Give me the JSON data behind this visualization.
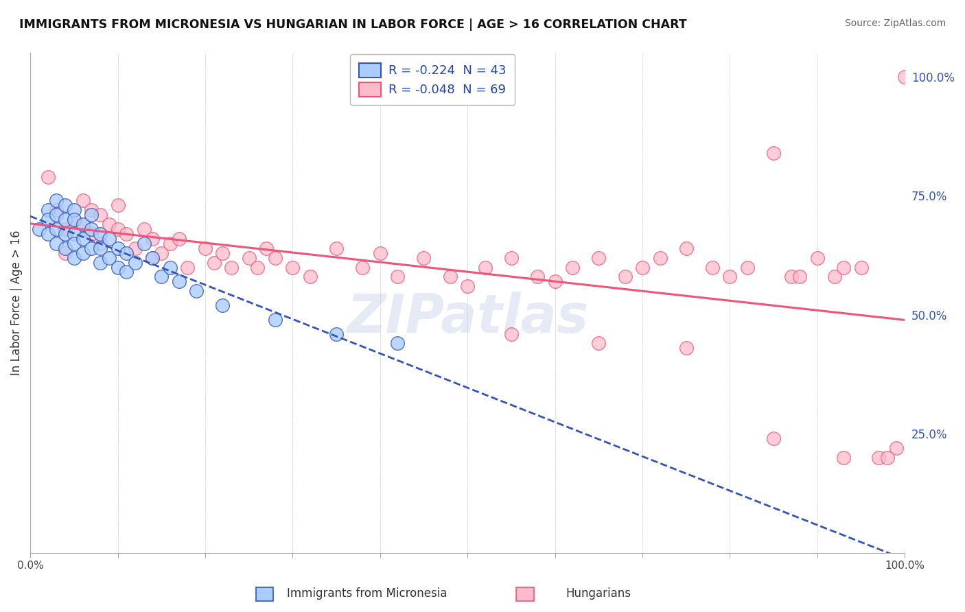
{
  "title": "IMMIGRANTS FROM MICRONESIA VS HUNGARIAN IN LABOR FORCE | AGE > 16 CORRELATION CHART",
  "source": "Source: ZipAtlas.com",
  "ylabel": "In Labor Force | Age > 16",
  "legend_blue_r": "-0.224",
  "legend_blue_n": "43",
  "legend_pink_r": "-0.048",
  "legend_pink_n": "69",
  "legend_blue_label": "Immigrants from Micronesia",
  "legend_pink_label": "Hungarians",
  "blue_color": "#aaccff",
  "pink_color": "#ffbbcc",
  "trend_blue_color": "#3355bb",
  "trend_pink_color": "#ee5577",
  "background_color": "#ffffff",
  "grid_color": "#cccccc",
  "xlim": [
    0.0,
    1.0
  ],
  "ylim": [
    0.0,
    1.05
  ],
  "blue_x": [
    0.01,
    0.02,
    0.02,
    0.02,
    0.03,
    0.03,
    0.03,
    0.03,
    0.04,
    0.04,
    0.04,
    0.04,
    0.05,
    0.05,
    0.05,
    0.05,
    0.05,
    0.06,
    0.06,
    0.06,
    0.07,
    0.07,
    0.07,
    0.08,
    0.08,
    0.08,
    0.09,
    0.09,
    0.1,
    0.1,
    0.11,
    0.11,
    0.12,
    0.13,
    0.14,
    0.15,
    0.16,
    0.17,
    0.19,
    0.22,
    0.28,
    0.35,
    0.42
  ],
  "blue_y": [
    0.68,
    0.72,
    0.7,
    0.67,
    0.74,
    0.71,
    0.68,
    0.65,
    0.73,
    0.7,
    0.67,
    0.64,
    0.72,
    0.7,
    0.67,
    0.65,
    0.62,
    0.69,
    0.66,
    0.63,
    0.71,
    0.68,
    0.64,
    0.67,
    0.64,
    0.61,
    0.66,
    0.62,
    0.64,
    0.6,
    0.63,
    0.59,
    0.61,
    0.65,
    0.62,
    0.58,
    0.6,
    0.57,
    0.55,
    0.52,
    0.49,
    0.46,
    0.44
  ],
  "pink_x": [
    0.02,
    0.03,
    0.04,
    0.04,
    0.05,
    0.06,
    0.06,
    0.07,
    0.07,
    0.08,
    0.08,
    0.09,
    0.1,
    0.1,
    0.11,
    0.12,
    0.13,
    0.14,
    0.14,
    0.15,
    0.16,
    0.17,
    0.18,
    0.2,
    0.21,
    0.22,
    0.23,
    0.25,
    0.26,
    0.27,
    0.28,
    0.3,
    0.32,
    0.35,
    0.38,
    0.4,
    0.42,
    0.45,
    0.48,
    0.5,
    0.52,
    0.55,
    0.58,
    0.6,
    0.62,
    0.65,
    0.68,
    0.7,
    0.72,
    0.75,
    0.78,
    0.8,
    0.82,
    0.85,
    0.87,
    0.88,
    0.9,
    0.92,
    0.93,
    0.95,
    0.97,
    0.98,
    0.99,
    1.0,
    0.55,
    0.65,
    0.75,
    0.85,
    0.93
  ],
  "pink_y": [
    0.79,
    0.72,
    0.68,
    0.63,
    0.7,
    0.69,
    0.74,
    0.72,
    0.67,
    0.71,
    0.65,
    0.69,
    0.73,
    0.68,
    0.67,
    0.64,
    0.68,
    0.66,
    0.62,
    0.63,
    0.65,
    0.66,
    0.6,
    0.64,
    0.61,
    0.63,
    0.6,
    0.62,
    0.6,
    0.64,
    0.62,
    0.6,
    0.58,
    0.64,
    0.6,
    0.63,
    0.58,
    0.62,
    0.58,
    0.56,
    0.6,
    0.62,
    0.58,
    0.57,
    0.6,
    0.62,
    0.58,
    0.6,
    0.62,
    0.64,
    0.6,
    0.58,
    0.6,
    0.84,
    0.58,
    0.58,
    0.62,
    0.58,
    0.6,
    0.6,
    0.2,
    0.2,
    0.22,
    1.0,
    0.46,
    0.44,
    0.43,
    0.24,
    0.2
  ],
  "right_ytick_labels": [
    "100.0%",
    "75.0%",
    "50.0%",
    "25.0%"
  ],
  "right_ytick_vals": [
    1.0,
    0.75,
    0.5,
    0.25
  ],
  "xtick_vals": [
    0.0,
    0.1,
    0.2,
    0.3,
    0.4,
    0.5,
    0.6,
    0.7,
    0.8,
    0.9,
    1.0
  ],
  "xtick_labels": [
    "0.0%",
    "",
    "",
    "",
    "",
    "",
    "",
    "",
    "",
    "",
    "100.0%"
  ]
}
